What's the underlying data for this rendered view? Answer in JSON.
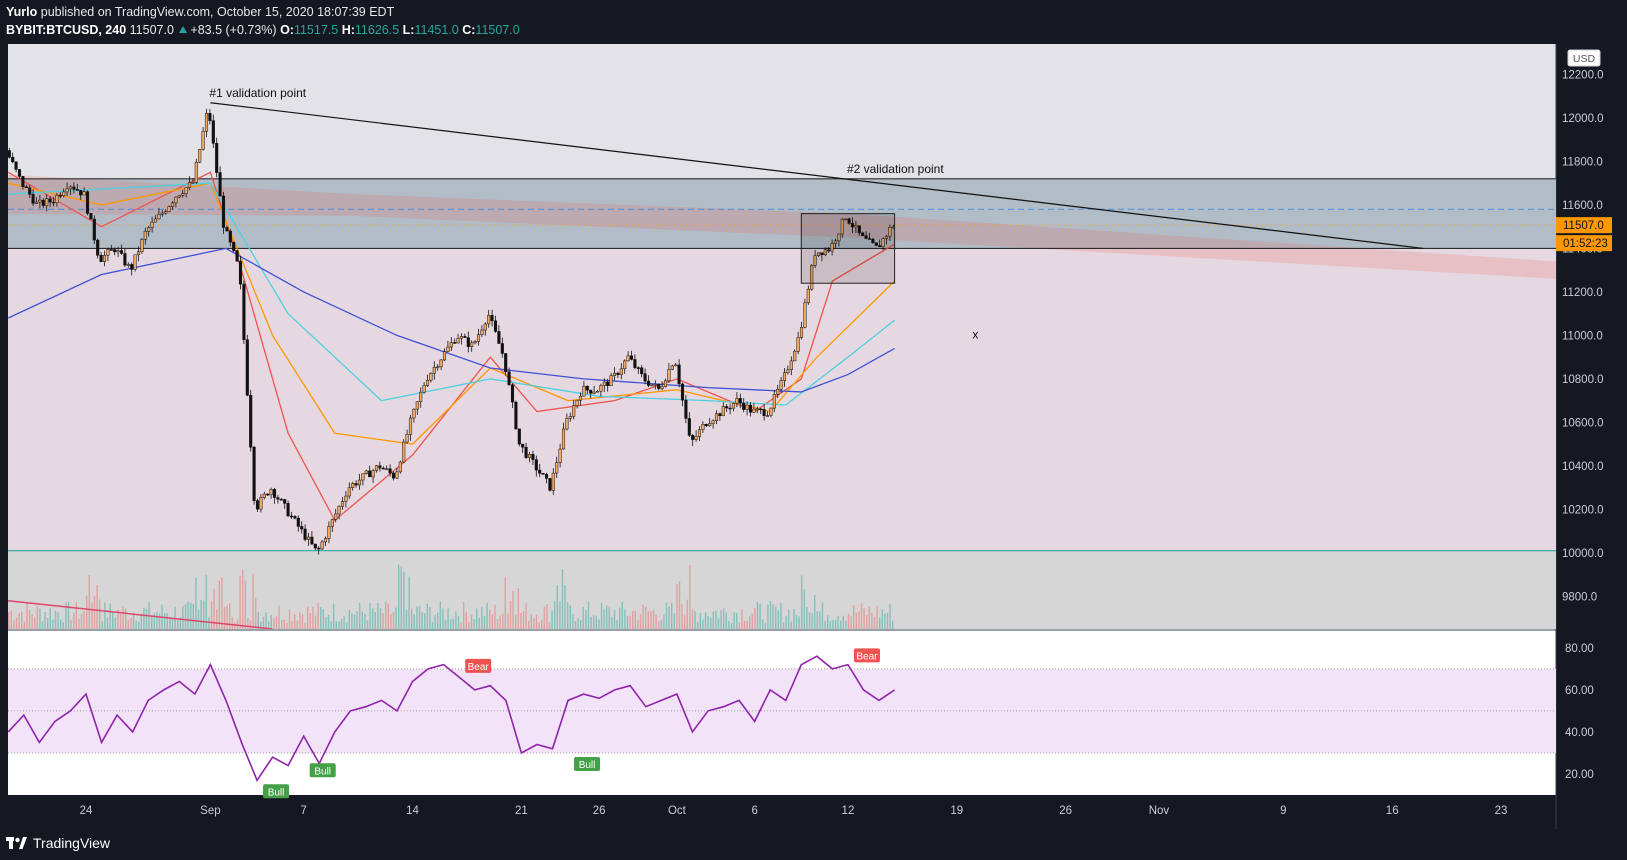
{
  "header": {
    "author": "Yurlo",
    "published": " published on TradingView.com, October 15, 2020 18:07:39 EDT",
    "symbol": "BYBIT:BTCUSD, 240",
    "last": "11507.0",
    "change": "+83.5 (+0.73%)",
    "o_label": "O:",
    "o_val": "11517.5",
    "h_label": "H:",
    "h_val": "11626.5",
    "l_label": "L:",
    "l_val": "11451.0",
    "c_label": "C:",
    "c_val": "11507.0"
  },
  "footer": {
    "brand": "TradingView"
  },
  "colors": {
    "up": "#26a69a",
    "candle_body": "#f5a962",
    "candle_outline": "#111111",
    "ma_red": "#ef5350",
    "ma_orange": "#ff9800",
    "ma_cyan": "#4dd0e1",
    "ma_blue": "#3f51d6",
    "rsi": "#8e24aa",
    "price_tag": "#ff9800",
    "bull": "#43a047",
    "bear": "#ef5350"
  },
  "chart_data": {
    "type": "candlestick",
    "currency": "USD",
    "last_price": "11507.0",
    "countdown": "01:52:23",
    "ylim": [
      9650,
      12340
    ],
    "y_ticks": [
      "12200.0",
      "12000.0",
      "11800.0",
      "11600.0",
      "11400.0",
      "11200.0",
      "11000.0",
      "10800.0",
      "10600.0",
      "10400.0",
      "10200.0",
      "10000.0",
      "9800.0"
    ],
    "x_ticks": [
      {
        "label": "24",
        "x": "2020-08-24"
      },
      {
        "label": "Sep",
        "x": "2020-09-01"
      },
      {
        "label": "7",
        "x": "2020-09-07"
      },
      {
        "label": "14",
        "x": "2020-09-14"
      },
      {
        "label": "21",
        "x": "2020-09-21"
      },
      {
        "label": "26",
        "x": "2020-09-26"
      },
      {
        "label": "Oct",
        "x": "2020-10-01"
      },
      {
        "label": "6",
        "x": "2020-10-06"
      },
      {
        "label": "12",
        "x": "2020-10-12"
      },
      {
        "label": "19",
        "x": "2020-10-19"
      },
      {
        "label": "26",
        "x": "2020-10-26"
      },
      {
        "label": "Nov",
        "x": "2020-11-01"
      },
      {
        "label": "9",
        "x": "2020-11-09"
      },
      {
        "label": "16",
        "x": "2020-11-16"
      },
      {
        "label": "23",
        "x": "2020-11-23"
      }
    ],
    "price_path": [
      [
        "2020-08-19",
        11850
      ],
      [
        "2020-08-20",
        11700
      ],
      [
        "2020-08-21",
        11600
      ],
      [
        "2020-08-22",
        11620
      ],
      [
        "2020-08-23",
        11700
      ],
      [
        "2020-08-24",
        11650
      ],
      [
        "2020-08-25",
        11350
      ],
      [
        "2020-08-26",
        11400
      ],
      [
        "2020-08-27",
        11300
      ],
      [
        "2020-08-28",
        11480
      ],
      [
        "2020-08-29",
        11560
      ],
      [
        "2020-08-30",
        11650
      ],
      [
        "2020-08-31",
        11700
      ],
      [
        "2020-09-01",
        12050
      ],
      [
        "2020-09-02",
        11500
      ],
      [
        "2020-09-03",
        11300
      ],
      [
        "2020-09-04",
        10200
      ],
      [
        "2020-09-05",
        10300
      ],
      [
        "2020-09-06",
        10200
      ],
      [
        "2020-09-07",
        10100
      ],
      [
        "2020-09-08",
        10000
      ],
      [
        "2020-09-09",
        10150
      ],
      [
        "2020-09-10",
        10300
      ],
      [
        "2020-09-11",
        10350
      ],
      [
        "2020-09-12",
        10400
      ],
      [
        "2020-09-13",
        10350
      ],
      [
        "2020-09-14",
        10600
      ],
      [
        "2020-09-15",
        10800
      ],
      [
        "2020-09-16",
        10900
      ],
      [
        "2020-09-17",
        11000
      ],
      [
        "2020-09-18",
        10950
      ],
      [
        "2020-09-19",
        11100
      ],
      [
        "2020-09-20",
        10900
      ],
      [
        "2020-09-21",
        10500
      ],
      [
        "2020-09-22",
        10400
      ],
      [
        "2020-09-23",
        10300
      ],
      [
        "2020-09-24",
        10600
      ],
      [
        "2020-09-25",
        10750
      ],
      [
        "2020-09-26",
        10750
      ],
      [
        "2020-09-27",
        10800
      ],
      [
        "2020-09-28",
        10900
      ],
      [
        "2020-09-29",
        10800
      ],
      [
        "2020-09-30",
        10750
      ],
      [
        "2020-10-01",
        10900
      ],
      [
        "2020-10-02",
        10500
      ],
      [
        "2020-10-03",
        10600
      ],
      [
        "2020-10-04",
        10650
      ],
      [
        "2020-10-05",
        10700
      ],
      [
        "2020-10-06",
        10650
      ],
      [
        "2020-10-07",
        10650
      ],
      [
        "2020-10-08",
        10800
      ],
      [
        "2020-10-09",
        11000
      ],
      [
        "2020-10-10",
        11380
      ],
      [
        "2020-10-11",
        11400
      ],
      [
        "2020-10-12",
        11550
      ],
      [
        "2020-10-13",
        11450
      ],
      [
        "2020-10-14",
        11400
      ],
      [
        "2020-10-15",
        11507
      ]
    ],
    "moving_averages": [
      {
        "color": "#ef5350",
        "points": [
          [
            "2020-08-19",
            11750
          ],
          [
            "2020-08-25",
            11500
          ],
          [
            "2020-09-01",
            11750
          ],
          [
            "2020-09-03",
            11300
          ],
          [
            "2020-09-06",
            10550
          ],
          [
            "2020-09-09",
            10150
          ],
          [
            "2020-09-14",
            10450
          ],
          [
            "2020-09-19",
            10900
          ],
          [
            "2020-09-22",
            10650
          ],
          [
            "2020-09-27",
            10700
          ],
          [
            "2020-10-01",
            10800
          ],
          [
            "2020-10-06",
            10650
          ],
          [
            "2020-10-09",
            10800
          ],
          [
            "2020-10-11",
            11250
          ],
          [
            "2020-10-15",
            11420
          ]
        ]
      },
      {
        "color": "#ff9800",
        "points": [
          [
            "2020-08-19",
            11700
          ],
          [
            "2020-08-25",
            11600
          ],
          [
            "2020-09-01",
            11700
          ],
          [
            "2020-09-05",
            11000
          ],
          [
            "2020-09-09",
            10550
          ],
          [
            "2020-09-14",
            10500
          ],
          [
            "2020-09-19",
            10850
          ],
          [
            "2020-09-24",
            10700
          ],
          [
            "2020-10-01",
            10750
          ],
          [
            "2020-10-07",
            10650
          ],
          [
            "2020-10-10",
            10900
          ],
          [
            "2020-10-15",
            11250
          ]
        ]
      },
      {
        "color": "#4dd0e1",
        "points": [
          [
            "2020-08-19",
            11650
          ],
          [
            "2020-09-01",
            11700
          ],
          [
            "2020-09-06",
            11100
          ],
          [
            "2020-09-12",
            10700
          ],
          [
            "2020-09-19",
            10800
          ],
          [
            "2020-09-26",
            10720
          ],
          [
            "2020-10-03",
            10700
          ],
          [
            "2020-10-08",
            10680
          ],
          [
            "2020-10-12",
            10900
          ],
          [
            "2020-10-15",
            11070
          ]
        ]
      },
      {
        "color": "#3f51d6",
        "points": [
          [
            "2020-08-19",
            11080
          ],
          [
            "2020-08-25",
            11280
          ],
          [
            "2020-09-02",
            11400
          ],
          [
            "2020-09-07",
            11200
          ],
          [
            "2020-09-13",
            11000
          ],
          [
            "2020-09-19",
            10850
          ],
          [
            "2020-09-25",
            10800
          ],
          [
            "2020-10-03",
            10760
          ],
          [
            "2020-10-09",
            10740
          ],
          [
            "2020-10-12",
            10820
          ],
          [
            "2020-10-15",
            10940
          ]
        ]
      }
    ],
    "annotations": [
      {
        "text": "#1 validation point",
        "x": "2020-09-01",
        "y": 12060
      },
      {
        "text": "#2 validation point",
        "x": "2020-10-12",
        "y": 11710
      },
      {
        "text": "x",
        "x": "2020-10-20",
        "y": 10950
      }
    ],
    "rsi": {
      "ylim": [
        10,
        88
      ],
      "y_ticks": [
        "80.00",
        "60.00",
        "40.00",
        "20.00"
      ],
      "band": [
        30,
        70
      ],
      "mid": 50,
      "points": [
        [
          "2020-08-19",
          40
        ],
        [
          "2020-08-20",
          48
        ],
        [
          "2020-08-21",
          35
        ],
        [
          "2020-08-22",
          45
        ],
        [
          "2020-08-23",
          50
        ],
        [
          "2020-08-24",
          58
        ],
        [
          "2020-08-25",
          35
        ],
        [
          "2020-08-26",
          48
        ],
        [
          "2020-08-27",
          40
        ],
        [
          "2020-08-28",
          55
        ],
        [
          "2020-08-29",
          60
        ],
        [
          "2020-08-30",
          64
        ],
        [
          "2020-08-31",
          58
        ],
        [
          "2020-09-01",
          72
        ],
        [
          "2020-09-02",
          55
        ],
        [
          "2020-09-03",
          35
        ],
        [
          "2020-09-04",
          17
        ],
        [
          "2020-09-05",
          28
        ],
        [
          "2020-09-06",
          24
        ],
        [
          "2020-09-07",
          38
        ],
        [
          "2020-09-08",
          25
        ],
        [
          "2020-09-09",
          40
        ],
        [
          "2020-09-10",
          50
        ],
        [
          "2020-09-11",
          52
        ],
        [
          "2020-09-12",
          55
        ],
        [
          "2020-09-13",
          50
        ],
        [
          "2020-09-14",
          64
        ],
        [
          "2020-09-15",
          70
        ],
        [
          "2020-09-16",
          72
        ],
        [
          "2020-09-17",
          66
        ],
        [
          "2020-09-18",
          60
        ],
        [
          "2020-09-19",
          62
        ],
        [
          "2020-09-20",
          55
        ],
        [
          "2020-09-21",
          30
        ],
        [
          "2020-09-22",
          34
        ],
        [
          "2020-09-23",
          32
        ],
        [
          "2020-09-24",
          55
        ],
        [
          "2020-09-25",
          58
        ],
        [
          "2020-09-26",
          56
        ],
        [
          "2020-09-27",
          60
        ],
        [
          "2020-09-28",
          62
        ],
        [
          "2020-09-29",
          52
        ],
        [
          "2020-09-30",
          55
        ],
        [
          "2020-10-01",
          58
        ],
        [
          "2020-10-02",
          40
        ],
        [
          "2020-10-03",
          50
        ],
        [
          "2020-10-04",
          52
        ],
        [
          "2020-10-05",
          55
        ],
        [
          "2020-10-06",
          45
        ],
        [
          "2020-10-07",
          60
        ],
        [
          "2020-10-08",
          55
        ],
        [
          "2020-10-09",
          72
        ],
        [
          "2020-10-10",
          76
        ],
        [
          "2020-10-11",
          70
        ],
        [
          "2020-10-12",
          72
        ],
        [
          "2020-10-13",
          60
        ],
        [
          "2020-10-14",
          55
        ],
        [
          "2020-10-15",
          60
        ]
      ],
      "labels": [
        {
          "text": "Bull",
          "x": "2020-09-04",
          "y": 17
        },
        {
          "text": "Bull",
          "x": "2020-09-07",
          "y": 27
        },
        {
          "text": "Bear",
          "x": "2020-09-17",
          "y": 70
        },
        {
          "text": "Bull",
          "x": "2020-09-24",
          "y": 30
        },
        {
          "text": "Bear",
          "x": "2020-10-12",
          "y": 75
        }
      ]
    }
  }
}
